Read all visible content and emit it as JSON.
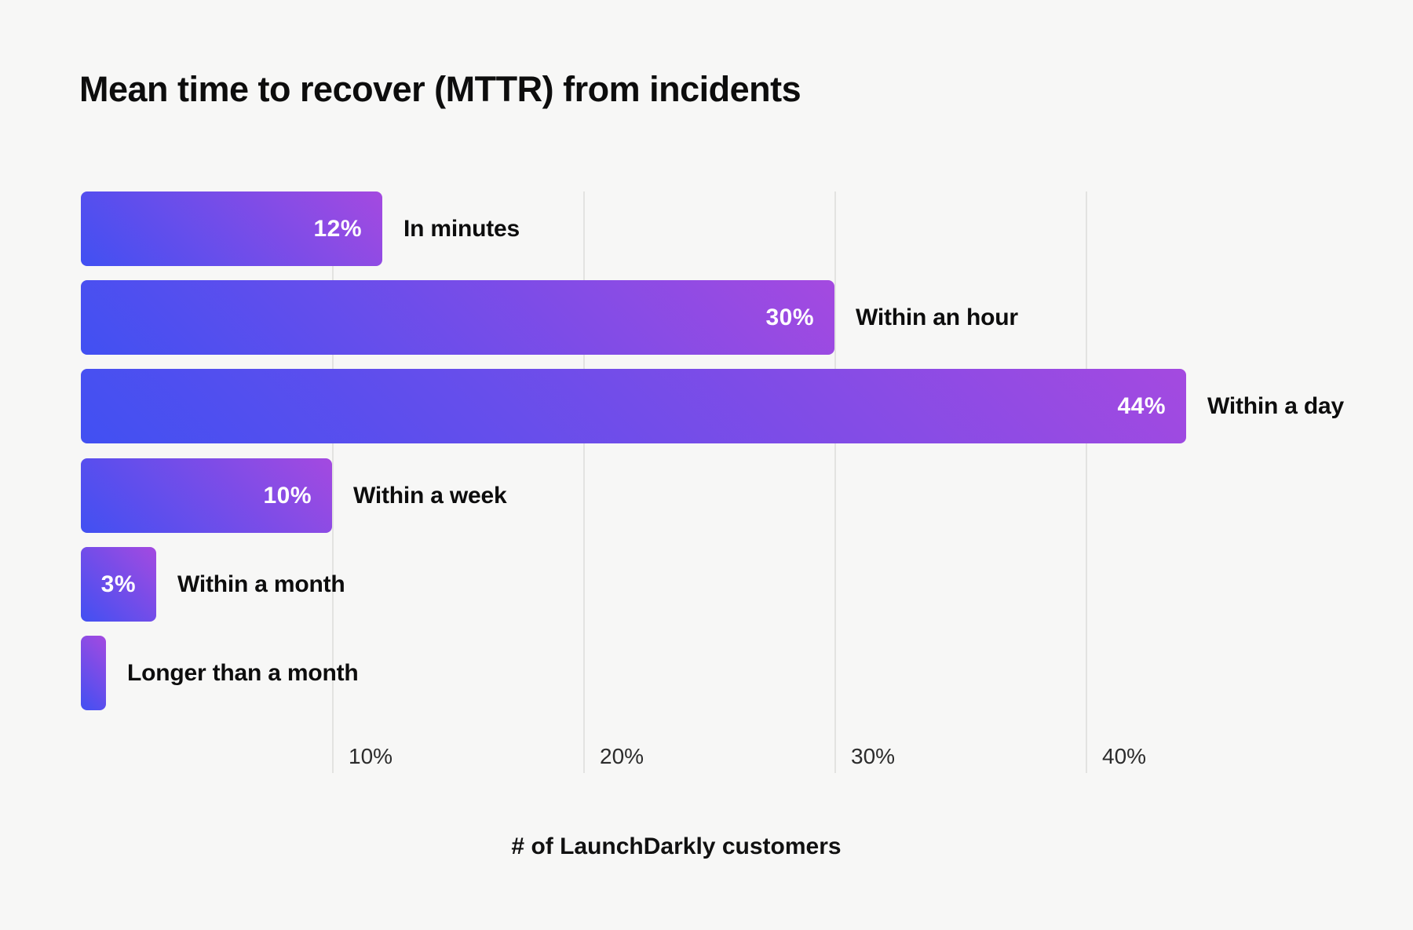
{
  "page": {
    "background_color": "#f7f7f6"
  },
  "chart_data": {
    "type": "bar",
    "orientation": "horizontal",
    "title": "Mean time to recover (MTTR) from incidents",
    "xlabel": "# of LaunchDarkly customers",
    "categories": [
      "In minutes",
      "Within an hour",
      "Within a day",
      "Within a week",
      "Within a month",
      "Longer than a month"
    ],
    "values": [
      12,
      30,
      44,
      10,
      3,
      1
    ],
    "value_labels": [
      "12%",
      "30%",
      "44%",
      "10%",
      "3%",
      ""
    ],
    "x_ticks": [
      {
        "value": 10,
        "label": "10%"
      },
      {
        "value": 20,
        "label": "20%"
      },
      {
        "value": 30,
        "label": "30%"
      },
      {
        "value": 40,
        "label": "40%"
      }
    ],
    "xlim": [
      0,
      50
    ],
    "grid": "vertical-only",
    "legend": "none",
    "colors": {
      "bar_gradient_from": "#4150f2",
      "bar_gradient_to": "#a44ae0",
      "gridline": "#e3e3e1",
      "title_text": "#0d0d0d",
      "tick_text": "#2c2c2c",
      "bar_value_text": "#ffffff",
      "background": "#f7f7f6"
    }
  }
}
